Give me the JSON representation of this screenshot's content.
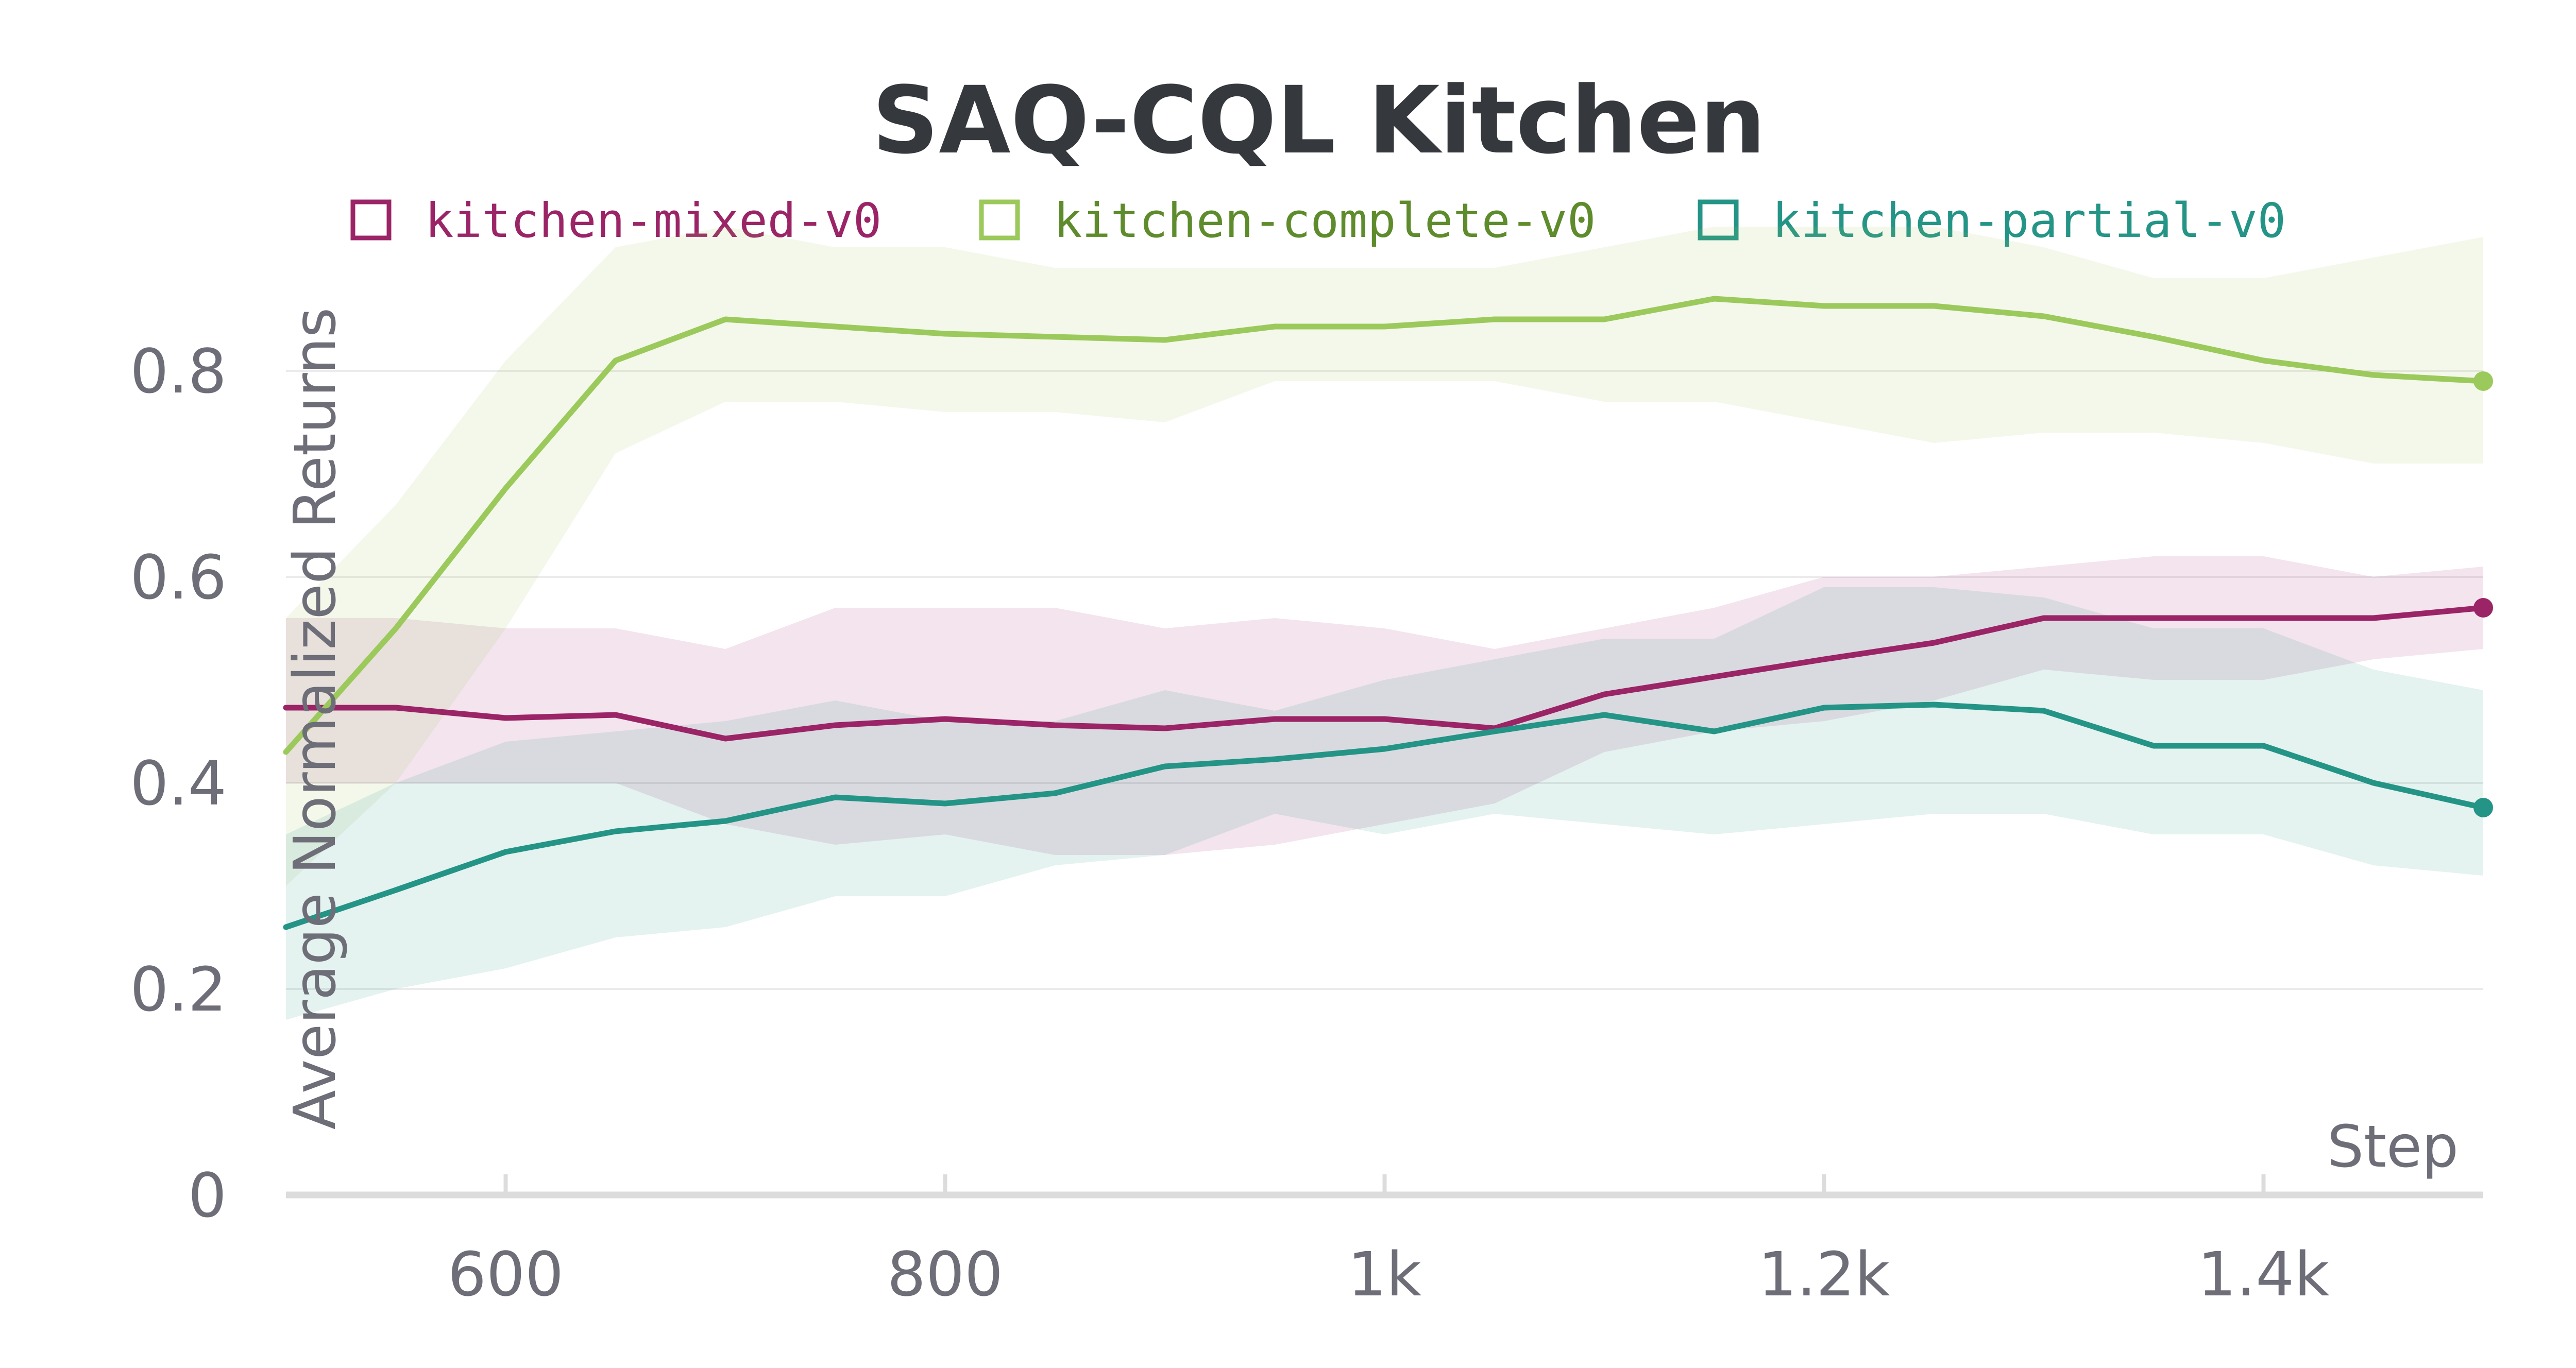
{
  "chart_data": {
    "type": "line",
    "title": "SAQ-CQL Kitchen",
    "xlabel": "Step",
    "ylabel": "Average Normalized Returns",
    "xlim": [
      500,
      1500
    ],
    "ylim": [
      0,
      0.95
    ],
    "x_ticks": [
      {
        "value": 600,
        "label": "600"
      },
      {
        "value": 800,
        "label": "800"
      },
      {
        "value": 1000,
        "label": "1k"
      },
      {
        "value": 1200,
        "label": "1.2k"
      },
      {
        "value": 1400,
        "label": "1.4k"
      }
    ],
    "y_ticks": [
      {
        "value": 0,
        "label": "0"
      },
      {
        "value": 0.2,
        "label": "0.2"
      },
      {
        "value": 0.4,
        "label": "0.4"
      },
      {
        "value": 0.6,
        "label": "0.6"
      },
      {
        "value": 0.8,
        "label": "0.8"
      }
    ],
    "grid": true,
    "legend_position": "top",
    "x": [
      500,
      550,
      600,
      650,
      700,
      750,
      800,
      850,
      900,
      950,
      1000,
      1050,
      1100,
      1150,
      1200,
      1250,
      1300,
      1350,
      1400,
      1450,
      1500
    ],
    "series": [
      {
        "name": "kitchen-mixed-v0",
        "color": "#9b2467",
        "label_color": "#9b2467",
        "values": [
          0.473,
          0.473,
          0.463,
          0.466,
          0.443,
          0.456,
          0.462,
          0.456,
          0.453,
          0.462,
          0.462,
          0.453,
          0.486,
          0.503,
          0.52,
          0.536,
          0.56,
          0.56,
          0.56,
          0.56,
          0.57
        ],
        "upper": [
          0.56,
          0.56,
          0.55,
          0.55,
          0.53,
          0.57,
          0.57,
          0.57,
          0.55,
          0.56,
          0.55,
          0.53,
          0.55,
          0.57,
          0.6,
          0.6,
          0.61,
          0.62,
          0.62,
          0.6,
          0.61
        ],
        "lower": [
          0.4,
          0.4,
          0.4,
          0.4,
          0.36,
          0.34,
          0.35,
          0.33,
          0.33,
          0.34,
          0.36,
          0.38,
          0.43,
          0.45,
          0.46,
          0.48,
          0.51,
          0.5,
          0.5,
          0.52,
          0.53
        ]
      },
      {
        "name": "kitchen-complete-v0",
        "color": "#9cc95b",
        "label_color": "#5e8b2b",
        "values": [
          0.43,
          0.55,
          0.686,
          0.81,
          0.85,
          0.843,
          0.836,
          0.833,
          0.83,
          0.843,
          0.843,
          0.85,
          0.85,
          0.87,
          0.863,
          0.863,
          0.853,
          0.833,
          0.81,
          0.796,
          0.79
        ],
        "upper": [
          0.56,
          0.67,
          0.81,
          0.92,
          0.94,
          0.92,
          0.92,
          0.9,
          0.9,
          0.9,
          0.9,
          0.9,
          0.92,
          0.94,
          0.94,
          0.94,
          0.92,
          0.89,
          0.89,
          0.91,
          0.93
        ],
        "lower": [
          0.3,
          0.4,
          0.55,
          0.72,
          0.77,
          0.77,
          0.76,
          0.76,
          0.75,
          0.79,
          0.79,
          0.79,
          0.77,
          0.77,
          0.75,
          0.73,
          0.74,
          0.74,
          0.73,
          0.71,
          0.71
        ]
      },
      {
        "name": "kitchen-partial-v0",
        "color": "#249486",
        "label_color": "#249486",
        "values": [
          0.26,
          0.296,
          0.333,
          0.353,
          0.363,
          0.386,
          0.38,
          0.39,
          0.416,
          0.423,
          0.433,
          0.45,
          0.466,
          0.45,
          0.473,
          0.476,
          0.47,
          0.436,
          0.436,
          0.4,
          0.376
        ],
        "upper": [
          0.35,
          0.4,
          0.44,
          0.45,
          0.46,
          0.48,
          0.46,
          0.46,
          0.49,
          0.47,
          0.5,
          0.52,
          0.54,
          0.54,
          0.59,
          0.59,
          0.58,
          0.55,
          0.55,
          0.51,
          0.49
        ],
        "lower": [
          0.17,
          0.2,
          0.22,
          0.25,
          0.26,
          0.29,
          0.29,
          0.32,
          0.33,
          0.37,
          0.35,
          0.37,
          0.36,
          0.35,
          0.36,
          0.37,
          0.37,
          0.35,
          0.35,
          0.32,
          0.31
        ]
      }
    ]
  }
}
